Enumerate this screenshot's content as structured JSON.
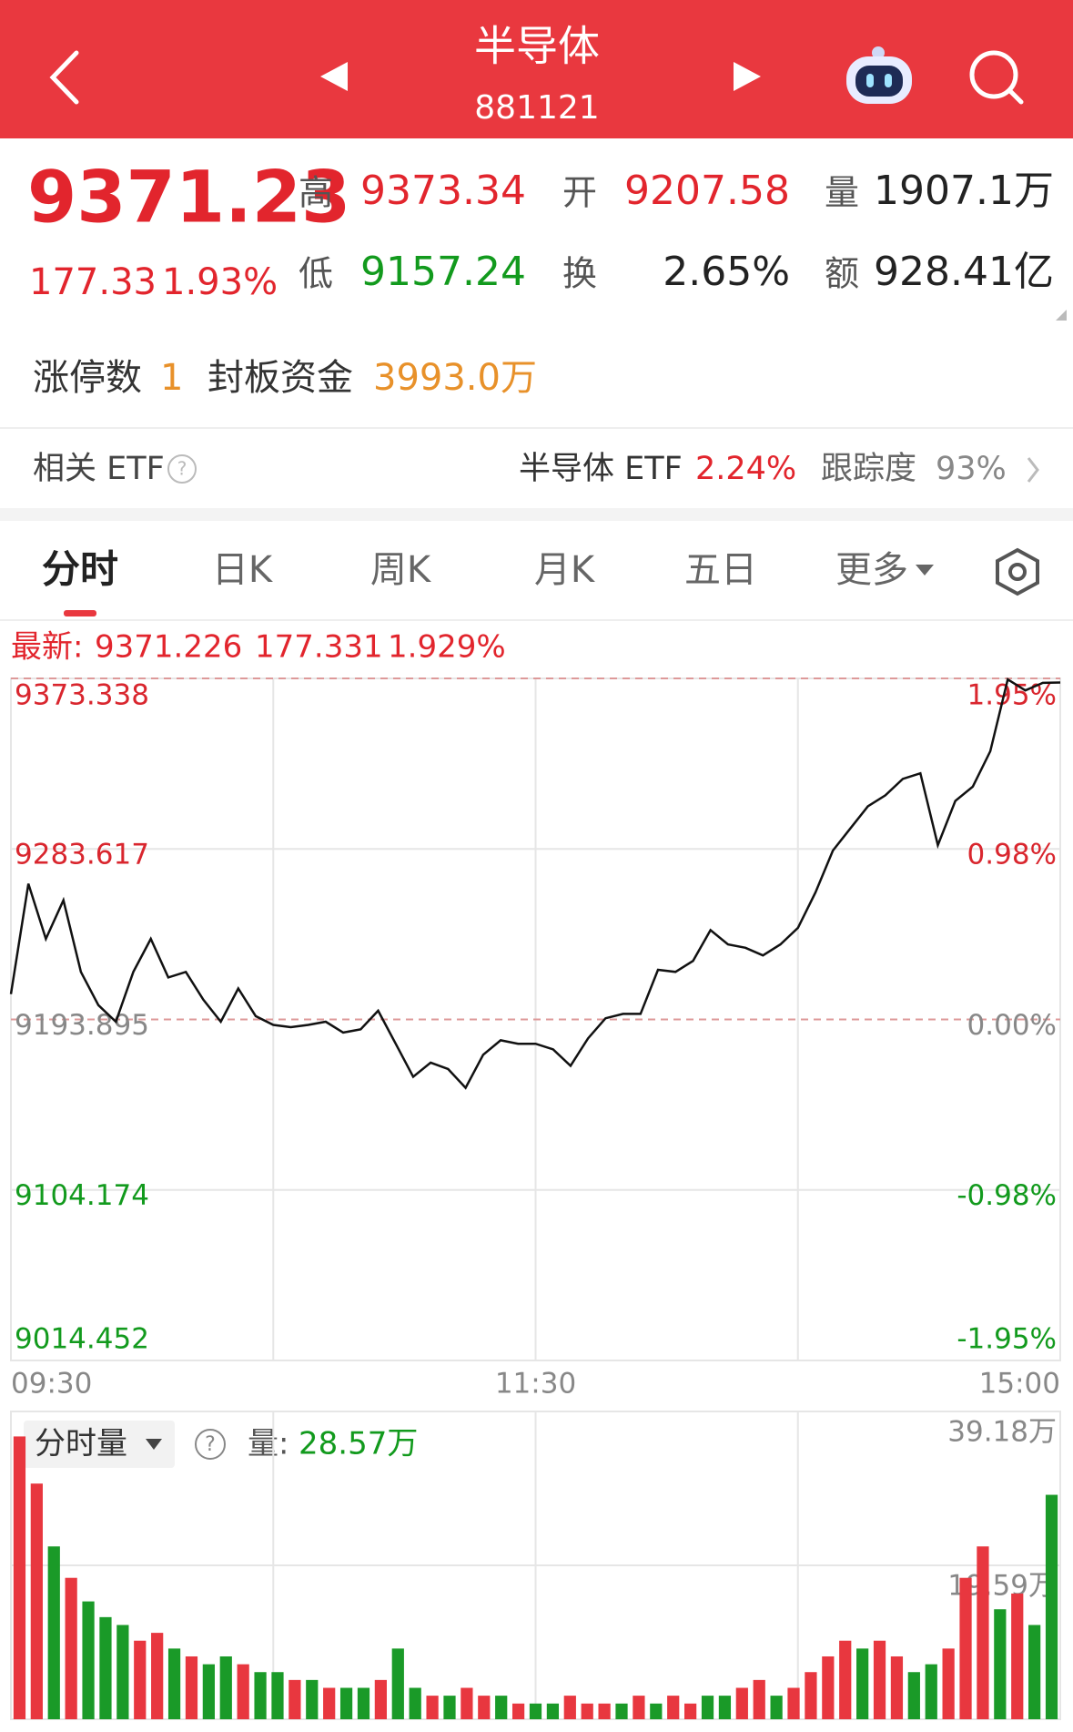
{
  "header": {
    "title": "半导体",
    "code": "881121"
  },
  "quote": {
    "price": "9371.23",
    "change": "177.33",
    "change_pct": "1.93%",
    "high_label": "高",
    "high": "9373.34",
    "open_label": "开",
    "open": "9207.58",
    "volume_label": "量",
    "volume": "1907.1万",
    "low_label": "低",
    "low": "9157.24",
    "turnover_label": "换",
    "turnover": "2.65%",
    "amount_label": "额",
    "amount": "928.41亿"
  },
  "limit": {
    "count_label": "涨停数",
    "count": "1",
    "fund_label": "封板资金",
    "fund": "3993.0万"
  },
  "etf": {
    "label": "相关 ETF",
    "name": "半导体 ETF",
    "change": "2.24%",
    "tracking_label": "跟踪度",
    "tracking": "93%"
  },
  "tabs": [
    "分时",
    "日K",
    "周K",
    "月K",
    "五日",
    "更多"
  ],
  "latest": {
    "label": "最新:",
    "price": "9371.226",
    "change": "177.331",
    "pct": "1.929%"
  },
  "chart_data": [
    {
      "type": "line",
      "color": "#111111",
      "categories": [
        "09:30",
        null,
        null,
        null,
        null,
        null,
        null,
        null,
        null,
        null,
        null,
        null,
        null,
        null,
        null,
        null,
        null,
        null,
        null,
        null,
        null,
        null,
        null,
        null,
        null,
        null,
        null,
        null,
        null,
        null,
        "11:30",
        null,
        null,
        null,
        null,
        null,
        null,
        null,
        null,
        null,
        null,
        null,
        null,
        null,
        null,
        null,
        null,
        null,
        null,
        null,
        null,
        null,
        null,
        null,
        null,
        null,
        null,
        null,
        null,
        null,
        "15:00"
      ],
      "values": [
        9207.2,
        9265.3,
        9236.3,
        9256.6,
        9218.9,
        9201.4,
        9192.7,
        9218.9,
        9236.3,
        9216.0,
        9218.9,
        9204.3,
        9192.7,
        9210.2,
        9195.6,
        9191.0,
        9189.8,
        9191.0,
        9192.7,
        9187.0,
        9188.7,
        9198.5,
        9181.1,
        9163.7,
        9171.2,
        9167.8,
        9157.9,
        9175.3,
        9182.9,
        9181.1,
        9181.1,
        9178.2,
        9169.5,
        9184.0,
        9194.5,
        9196.8,
        9196.8,
        9220.0,
        9218.9,
        9224.7,
        9240.9,
        9233.4,
        9231.6,
        9227.6,
        9233.4,
        9242.1,
        9260.7,
        9282.8,
        9294.4,
        9306.0,
        9311.8,
        9320.5,
        9323.4,
        9285.6,
        9308.9,
        9316.4,
        9335.0,
        9372.8,
        9367.0,
        9371.0,
        9371.2
      ],
      "ylim": [
        9014.452,
        9373.338
      ],
      "yticks": [
        9373.338,
        9283.617,
        9193.895,
        9104.174,
        9014.452
      ],
      "y2lim": [
        -1.95,
        1.95
      ],
      "y2ticks": [
        {
          "value": 1.95,
          "label": "1.95%"
        },
        {
          "value": 0.98,
          "label": "0.98%"
        },
        {
          "value": 0.0,
          "label": "0.00%"
        },
        {
          "value": -0.98,
          "label": "-0.98%"
        },
        {
          "value": -1.95,
          "label": "-1.95%"
        }
      ],
      "grid": true
    },
    {
      "type": "bar",
      "title": "分时量",
      "latest_label": "量:",
      "latest": "28.57万",
      "values": [
        36,
        30,
        22,
        18,
        15,
        13,
        12,
        10,
        11,
        9,
        8,
        7,
        8,
        7,
        6,
        6,
        5,
        5,
        4,
        4,
        4,
        5,
        9,
        4,
        3,
        3,
        4,
        3,
        3,
        2,
        2,
        2,
        3,
        2,
        2,
        2,
        3,
        2,
        3,
        2,
        3,
        3,
        4,
        5,
        3,
        4,
        6,
        8,
        10,
        9,
        10,
        8,
        6,
        7,
        9,
        18,
        22,
        14,
        16,
        12,
        28.57
      ],
      "colors": [
        "#e8373f",
        "#e8373f",
        "#1a9a28",
        "#e8373f",
        "#1a9a28",
        "#1a9a28",
        "#1a9a28",
        "#e8373f",
        "#e8373f",
        "#1a9a28",
        "#e8373f",
        "#1a9a28",
        "#1a9a28",
        "#e8373f",
        "#1a9a28",
        "#1a9a28",
        "#e8373f",
        "#1a9a28",
        "#e8373f",
        "#1a9a28",
        "#1a9a28",
        "#e8373f",
        "#1a9a28",
        "#1a9a28",
        "#e8373f",
        "#1a9a28",
        "#e8373f",
        "#e8373f",
        "#1a9a28",
        "#e8373f",
        "#1a9a28",
        "#1a9a28",
        "#e8373f",
        "#e8373f",
        "#e8373f",
        "#1a9a28",
        "#e8373f",
        "#1a9a28",
        "#e8373f",
        "#e8373f",
        "#1a9a28",
        "#1a9a28",
        "#e8373f",
        "#e8373f",
        "#1a9a28",
        "#e8373f",
        "#e8373f",
        "#e8373f",
        "#e8373f",
        "#1a9a28",
        "#e8373f",
        "#e8373f",
        "#1a9a28",
        "#1a9a28",
        "#e8373f",
        "#e8373f",
        "#e8373f",
        "#1a9a28",
        "#e8373f",
        "#1a9a28",
        "#1a9a28"
      ],
      "ylim": [
        0,
        39.18
      ],
      "yticks": [
        {
          "value": 39.18,
          "label": "39.18万"
        },
        {
          "value": 19.59,
          "label": "19.59万"
        }
      ],
      "grid": true
    }
  ]
}
